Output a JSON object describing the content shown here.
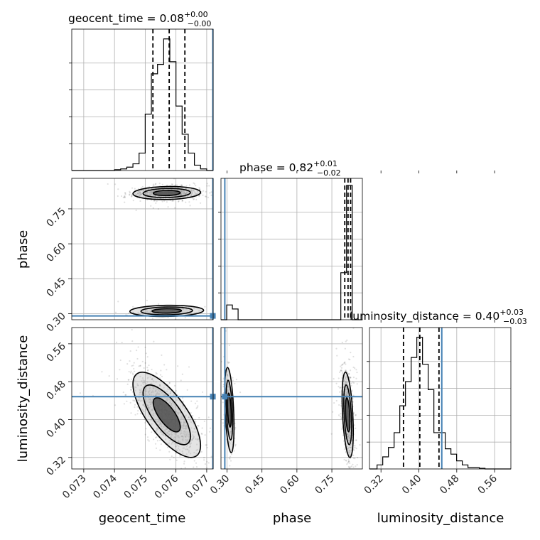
{
  "chart_data": {
    "type": "corner",
    "parameters": [
      "geocent_time",
      "phase",
      "luminosity_distance"
    ],
    "axis_labels": {
      "geocent_time": "geocent_time",
      "phase": "phase",
      "luminosity_distance": "luminosity_distance"
    },
    "titles": [
      {
        "param": "geocent_time",
        "prefix": "geocent_time = ",
        "median": "0.08",
        "plus": "+0.00",
        "minus": "−0.00"
      },
      {
        "param": "phase",
        "prefix": "phase = ",
        "median": "0.82",
        "plus": "+0.01",
        "minus": "−0.02"
      },
      {
        "param": "luminosity_distance",
        "prefix": "luminosity_distance = ",
        "median": "0.40",
        "plus": "+0.03",
        "minus": "−0.03"
      }
    ],
    "ranges": {
      "geocent_time": [
        0.07261,
        0.07721
      ],
      "phase": [
        0.274,
        0.881
      ],
      "luminosity_distance": [
        0.2957,
        0.5943
      ]
    },
    "ticks": {
      "geocent_time": {
        "values": [
          0.073,
          0.074,
          0.075,
          0.076,
          0.077
        ],
        "labels": [
          "0.073",
          "0.074",
          "0.075",
          "0.076",
          "0.077"
        ]
      },
      "phase": {
        "values": [
          0.3,
          0.45,
          0.6,
          0.75
        ],
        "labels": [
          "0.30",
          "0.45",
          "0.60",
          "0.75"
        ]
      },
      "luminosity_distance": {
        "values": [
          0.32,
          0.4,
          0.48,
          0.56
        ],
        "labels": [
          "0.32",
          "0.40",
          "0.48",
          "0.56"
        ]
      }
    },
    "truths": {
      "geocent_time": 0.0772,
      "phase": 0.2905,
      "luminosity_distance": 0.4484
    },
    "quantiles": {
      "geocent_time": [
        0.07525,
        0.07578,
        0.07629
      ],
      "phase": [
        0.8055,
        0.8195,
        0.8305
      ],
      "luminosity_distance": [
        0.3675,
        0.402,
        0.4425
      ]
    },
    "histograms": {
      "geocent_time": {
        "edges": [
          0.07261,
          0.0727,
          0.0728,
          0.0729,
          0.073,
          0.0731,
          0.0732,
          0.0733,
          0.0734,
          0.0735,
          0.0736,
          0.0737,
          0.0738,
          0.0739,
          0.074,
          0.0741,
          0.0742,
          0.0743,
          0.0744,
          0.0745,
          0.0746,
          0.0747,
          0.0748,
          0.0749,
          0.075,
          0.0751,
          0.0752,
          0.0753,
          0.0754,
          0.0755,
          0.0756,
          0.0757,
          0.0758,
          0.0759,
          0.076,
          0.0761,
          0.0762,
          0.0763,
          0.0764,
          0.0765,
          0.0766,
          0.0767,
          0.0768,
          0.0769,
          0.077,
          0.07721
        ],
        "counts": [
          0,
          0,
          0,
          0,
          0,
          0,
          0,
          0,
          0,
          0,
          0,
          0,
          0,
          0,
          0.006,
          0.006,
          0.012,
          0.012,
          0.025,
          0.025,
          0.05,
          0.05,
          0.13,
          0.13,
          0.42,
          0.42,
          0.72,
          0.72,
          0.79,
          0.79,
          0.98,
          0.98,
          0.81,
          0.81,
          0.48,
          0.48,
          0.27,
          0.27,
          0.13,
          0.13,
          0.04,
          0.04,
          0.012,
          0.012,
          0
        ]
      },
      "phase": {
        "edges": [
          0.274,
          0.2985,
          0.323,
          0.3475,
          0.372,
          0.3965,
          0.421,
          0.4455,
          0.47,
          0.4945,
          0.519,
          0.5435,
          0.568,
          0.5925,
          0.617,
          0.6415,
          0.666,
          0.6905,
          0.715,
          0.7395,
          0.764,
          0.7885,
          0.813,
          0.8375,
          0.862,
          0.881
        ],
        "counts": [
          0,
          0.11,
          0.08,
          0,
          0,
          0,
          0,
          0,
          0,
          0,
          0,
          0,
          0,
          0,
          0,
          0,
          0,
          0,
          0,
          0,
          0,
          0.35,
          1.0,
          0,
          0
        ]
      },
      "luminosity_distance": {
        "edges": [
          0.2957,
          0.3117,
          0.3237,
          0.3357,
          0.3477,
          0.3597,
          0.3717,
          0.3837,
          0.3957,
          0.4077,
          0.4197,
          0.4317,
          0.4437,
          0.4557,
          0.4677,
          0.4797,
          0.4917,
          0.5037,
          0.5157,
          0.5277,
          0.5397,
          0.5943
        ],
        "counts": [
          0,
          0.03,
          0.09,
          0.16,
          0.27,
          0.47,
          0.65,
          0.83,
          0.98,
          0.78,
          0.59,
          0.27,
          0.27,
          0.15,
          0.11,
          0.06,
          0.03,
          0.01,
          0.01,
          0.005,
          0
        ]
      }
    },
    "scatter_2d": [
      {
        "x": "geocent_time",
        "y": "phase",
        "regions": [
          {
            "cx": 0.0757,
            "cy": 0.818,
            "sx": 0.00055,
            "sy": 0.014,
            "rho": 0.1,
            "n": 700
          },
          {
            "cx": 0.0757,
            "cy": 0.312,
            "sx": 0.0006,
            "sy": 0.012,
            "rho": 0.1,
            "n": 120
          }
        ]
      },
      {
        "x": "geocent_time",
        "y": "luminosity_distance",
        "regions": [
          {
            "cx": 0.0757,
            "cy": 0.41,
            "sx": 0.00055,
            "sy": 0.045,
            "rho": -0.72,
            "n": 1000
          }
        ]
      },
      {
        "x": "phase",
        "y": "luminosity_distance",
        "regions": [
          {
            "cx": 0.818,
            "cy": 0.41,
            "sx": 0.012,
            "sy": 0.045,
            "rho": -0.4,
            "n": 800
          },
          {
            "cx": 0.31,
            "cy": 0.42,
            "sx": 0.01,
            "sy": 0.045,
            "rho": -0.4,
            "n": 250
          }
        ]
      }
    ],
    "contour_colors": {
      "line": "#000000",
      "fill_dark": "#4d4d4d",
      "fill_light": "#b3b3b3"
    },
    "truth_color": "#4682b4",
    "grid": true
  }
}
